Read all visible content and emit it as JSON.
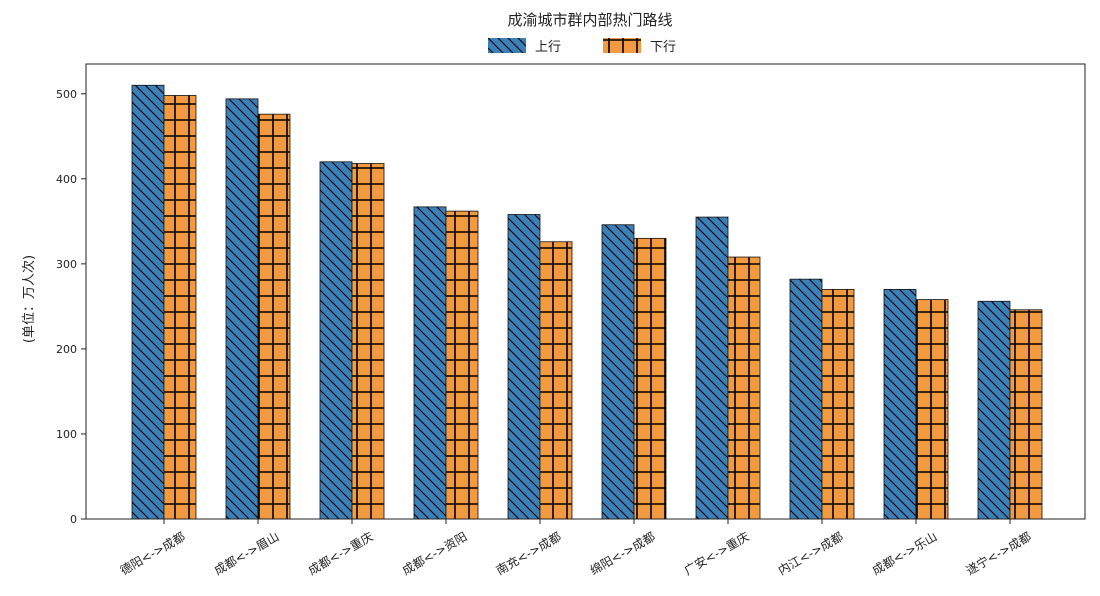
{
  "colors": {
    "series_up": "#3b80b9",
    "series_down": "#f19a3f",
    "axis": "#222222"
  },
  "chart_data": {
    "type": "bar",
    "title": "成渝城市群内部热门路线",
    "xlabel": "",
    "ylabel": "(单位：万人次)",
    "ylim": [
      0,
      535
    ],
    "yticks": [
      0,
      100,
      200,
      300,
      400,
      500
    ],
    "grid": false,
    "legend_position": "top-center",
    "categories": [
      "德阳<->成都",
      "成都<->眉山",
      "成都<->重庆",
      "成都<->资阳",
      "南充<->成都",
      "绵阳<->成都",
      "广安<->重庆",
      "内江<->成都",
      "成都<->乐山",
      "遂宁<->成都"
    ],
    "series": [
      {
        "name": "上行",
        "color": "#3b80b9",
        "hatch": "diagonal",
        "values": [
          510,
          494,
          420,
          367,
          358,
          346,
          355,
          282,
          270,
          256
        ]
      },
      {
        "name": "下行",
        "color": "#f19a3f",
        "hatch": "grid",
        "values": [
          498,
          476,
          418,
          362,
          326,
          330,
          308,
          270,
          258,
          246
        ]
      }
    ]
  }
}
